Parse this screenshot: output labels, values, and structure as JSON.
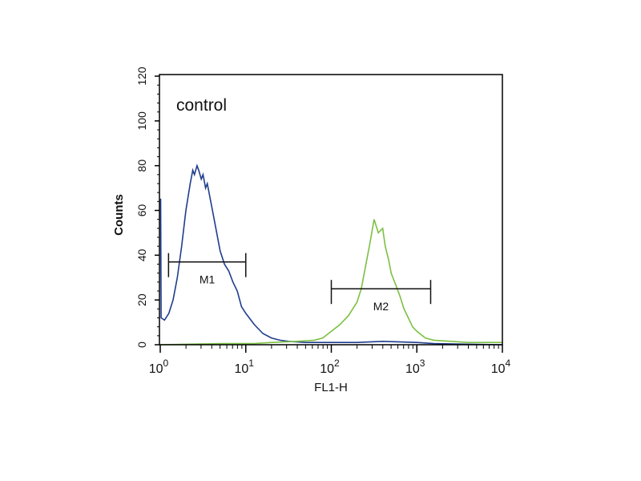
{
  "chart_data": {
    "type": "line",
    "title": "",
    "annotation": "control",
    "xlabel": "FL1-H",
    "ylabel": "Counts",
    "x_scale": "log",
    "xlim_log10": [
      0,
      4
    ],
    "ylim": [
      0,
      120
    ],
    "x_ticks": [
      {
        "base": "10",
        "exp": "0",
        "log10": 0
      },
      {
        "base": "10",
        "exp": "1",
        "log10": 1
      },
      {
        "base": "10",
        "exp": "2",
        "log10": 2
      },
      {
        "base": "10",
        "exp": "3",
        "log10": 3
      },
      {
        "base": "10",
        "exp": "4",
        "log10": 4
      }
    ],
    "y_ticks": [
      "0",
      "20",
      "40",
      "60",
      "80",
      "100",
      "120"
    ],
    "series": [
      {
        "name": "blue",
        "color": "#1f3d8c",
        "x_log10": [
          0,
          0.005,
          0.01,
          0.05,
          0.1,
          0.15,
          0.2,
          0.25,
          0.3,
          0.35,
          0.38,
          0.4,
          0.43,
          0.45,
          0.48,
          0.5,
          0.53,
          0.55,
          0.6,
          0.65,
          0.7,
          0.75,
          0.8,
          0.85,
          0.9,
          0.95,
          1.0,
          1.1,
          1.2,
          1.3,
          1.4,
          1.5,
          1.7,
          2.0,
          2.3,
          2.6,
          3.0,
          3.2,
          3.5,
          4.0
        ],
        "counts": [
          65,
          65,
          12,
          11,
          14,
          20,
          30,
          44,
          60,
          72,
          78,
          76,
          80,
          78,
          74,
          76,
          70,
          72,
          62,
          52,
          42,
          36,
          33,
          28,
          24,
          17,
          14,
          9,
          5,
          3,
          2,
          1.5,
          1,
          1,
          1,
          1.5,
          1,
          0.5,
          0.3,
          0
        ]
      },
      {
        "name": "green",
        "color": "#7cc043",
        "x_log10": [
          0,
          0.7,
          1.1,
          1.3,
          1.6,
          1.8,
          1.9,
          2.0,
          2.1,
          2.2,
          2.3,
          2.35,
          2.4,
          2.45,
          2.5,
          2.55,
          2.6,
          2.63,
          2.67,
          2.7,
          2.75,
          2.8,
          2.85,
          2.9,
          2.95,
          3.0,
          3.1,
          3.2,
          3.4,
          3.6,
          3.8,
          4.0
        ],
        "counts": [
          0,
          0.5,
          0.5,
          1,
          1.5,
          2,
          3,
          6,
          9,
          13,
          19,
          25,
          35,
          45,
          56,
          50,
          52,
          44,
          38,
          32,
          27,
          22,
          16,
          12,
          8,
          6,
          3,
          2,
          1.5,
          1,
          1,
          1
        ]
      }
    ],
    "markers": [
      {
        "label": "M1",
        "x_range": [
          1.25,
          10
        ],
        "count_level": 37
      },
      {
        "label": "M2",
        "x_range": [
          100,
          1450
        ],
        "count_level": 25
      }
    ],
    "grid": false,
    "legend": "none"
  }
}
